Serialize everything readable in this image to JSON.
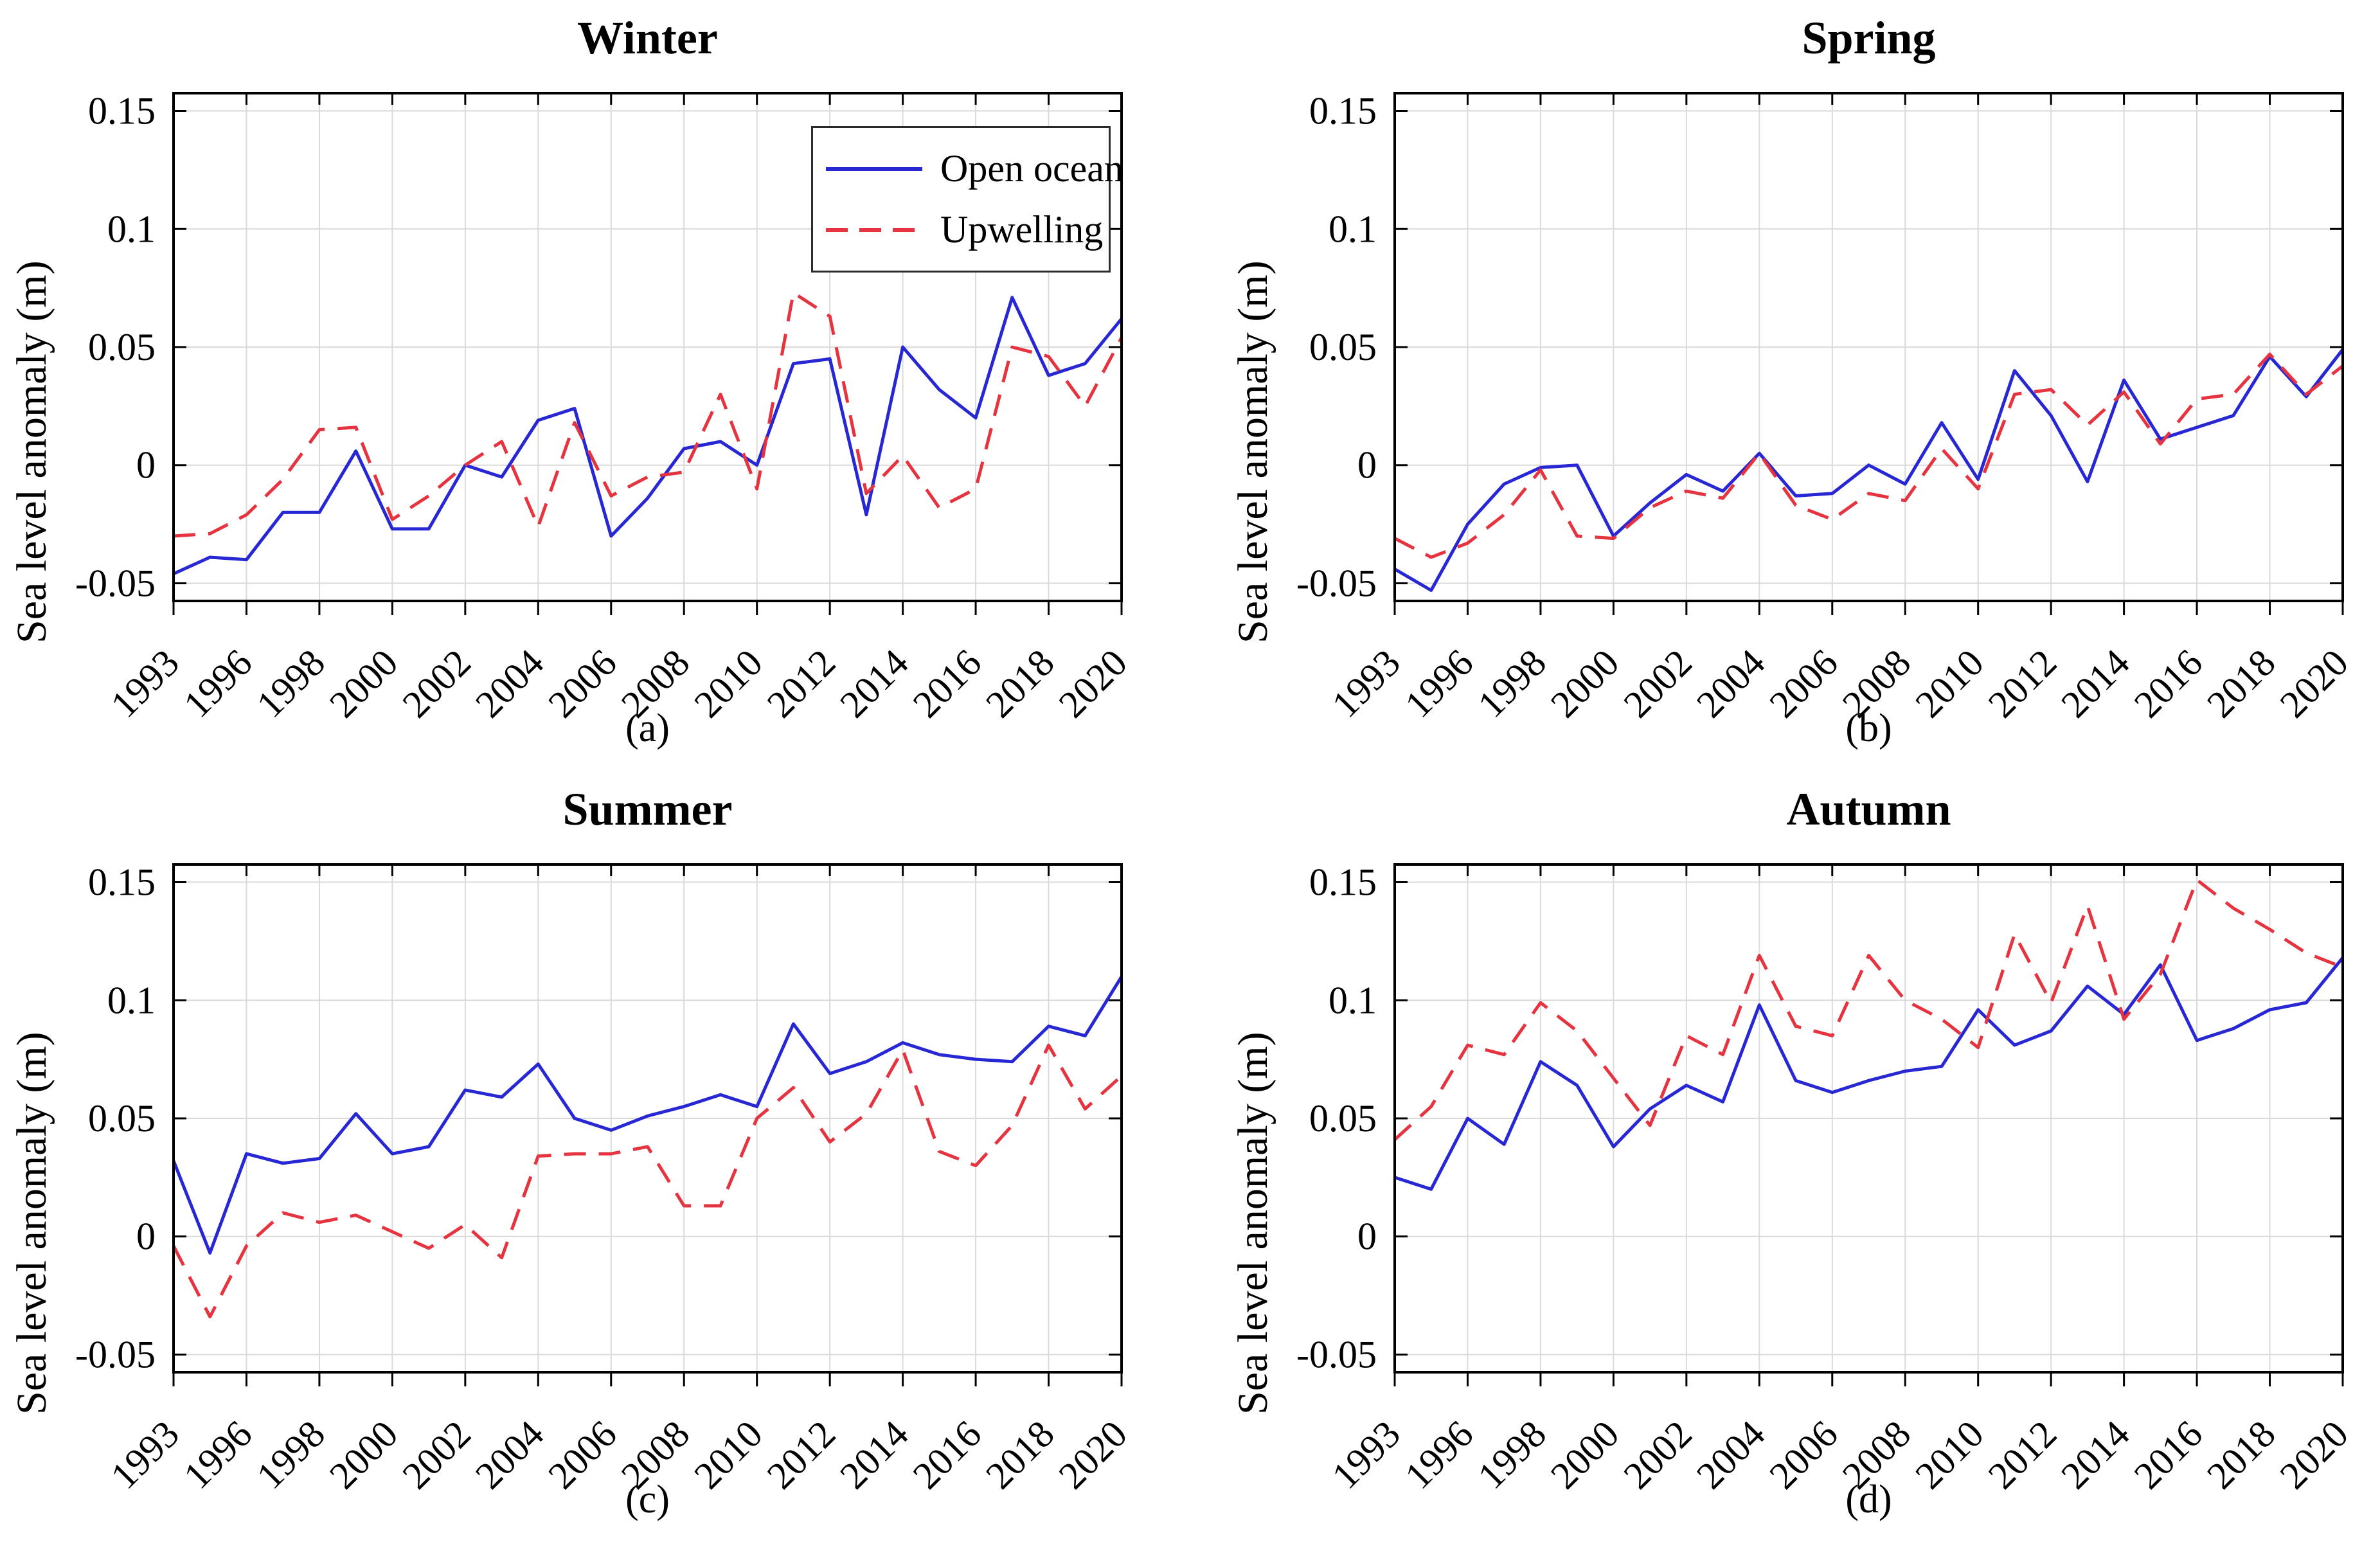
{
  "figure": {
    "y_axis_label": "Sea level anomaly (m)",
    "x_tick_labels": [
      "1993",
      "1996",
      "1998",
      "2000",
      "2002",
      "2004",
      "2006",
      "2008",
      "2010",
      "2012",
      "2014",
      "2016",
      "2018",
      "2020"
    ],
    "y_tick_labels": [
      "-0.05",
      "0",
      "0.05",
      "0.1",
      "0.15"
    ],
    "colors": {
      "open_ocean_line": "#2727d3",
      "upwelling_line": "#e5333f",
      "grid_line": "#dadada",
      "axis_and_text": "#000000",
      "background": "#ffffff"
    },
    "legend": {
      "entries": [
        {
          "label": "Open ocean",
          "style": "solid"
        },
        {
          "label": "Upwelling",
          "style": "dashed"
        }
      ]
    }
  },
  "chart_data": [
    {
      "type": "line",
      "title": "Winter",
      "caption": "(a)",
      "ylabel": "Sea level anomaly (m)",
      "n_points": 27,
      "x_tick_labels": [
        "1993",
        "1996",
        "1998",
        "2000",
        "2002",
        "2004",
        "2006",
        "2008",
        "2010",
        "2012",
        "2014",
        "2016",
        "2018",
        "2020"
      ],
      "y_ticks": [
        -0.05,
        0,
        0.05,
        0.1,
        0.15
      ],
      "y_tick_labels": [
        "-0.05",
        "0",
        "0.05",
        "0.1",
        "0.15"
      ],
      "ylim": [
        -0.0575,
        0.1575
      ],
      "grid": true,
      "legend_position": "top-right-inside",
      "show_legend": true,
      "series": [
        {
          "name": "Open ocean",
          "style": "solid",
          "values": [
            -0.046,
            -0.039,
            -0.04,
            -0.02,
            -0.02,
            0.006,
            -0.027,
            -0.027,
            0.0,
            -0.005,
            0.019,
            0.024,
            -0.03,
            -0.014,
            0.007,
            0.01,
            0.0,
            0.043,
            0.045,
            -0.021,
            0.05,
            0.032,
            0.02,
            0.071,
            0.038,
            0.043,
            0.062
          ]
        },
        {
          "name": "Upwelling",
          "style": "dashed",
          "values": [
            -0.03,
            -0.029,
            -0.021,
            -0.006,
            0.015,
            0.016,
            -0.023,
            -0.013,
            0.0,
            0.01,
            -0.026,
            0.018,
            -0.013,
            -0.005,
            -0.003,
            0.03,
            -0.01,
            0.073,
            0.063,
            -0.012,
            0.004,
            -0.018,
            -0.01,
            0.05,
            0.046,
            0.025,
            0.054
          ]
        }
      ]
    },
    {
      "type": "line",
      "title": "Spring",
      "caption": "(b)",
      "ylabel": "Sea level anomaly (m)",
      "n_points": 27,
      "x_tick_labels": [
        "1993",
        "1996",
        "1998",
        "2000",
        "2002",
        "2004",
        "2006",
        "2008",
        "2010",
        "2012",
        "2014",
        "2016",
        "2018",
        "2020"
      ],
      "y_ticks": [
        -0.05,
        0,
        0.05,
        0.1,
        0.15
      ],
      "y_tick_labels": [
        "-0.05",
        "0",
        "0.05",
        "0.1",
        "0.15"
      ],
      "ylim": [
        -0.0575,
        0.1575
      ],
      "grid": true,
      "show_legend": false,
      "series": [
        {
          "name": "Open ocean",
          "style": "solid",
          "values": [
            -0.044,
            -0.053,
            -0.025,
            -0.008,
            -0.001,
            0.0,
            -0.03,
            -0.016,
            -0.004,
            -0.011,
            0.005,
            -0.013,
            -0.012,
            0.0,
            -0.008,
            0.018,
            -0.006,
            0.04,
            0.021,
            -0.007,
            0.036,
            0.011,
            0.016,
            0.021,
            0.046,
            0.029,
            0.049
          ]
        },
        {
          "name": "Upwelling",
          "style": "dashed",
          "values": [
            -0.031,
            -0.039,
            -0.033,
            -0.021,
            -0.002,
            -0.03,
            -0.031,
            -0.018,
            -0.011,
            -0.014,
            0.005,
            -0.017,
            -0.023,
            -0.012,
            -0.015,
            0.007,
            -0.01,
            0.03,
            0.032,
            0.017,
            0.031,
            0.009,
            0.028,
            0.03,
            0.047,
            0.03,
            0.042
          ]
        }
      ]
    },
    {
      "type": "line",
      "title": "Summer",
      "caption": "(c)",
      "ylabel": "Sea level anomaly (m)",
      "n_points": 27,
      "x_tick_labels": [
        "1993",
        "1996",
        "1998",
        "2000",
        "2002",
        "2004",
        "2006",
        "2008",
        "2010",
        "2012",
        "2014",
        "2016",
        "2018",
        "2020"
      ],
      "y_ticks": [
        -0.05,
        0,
        0.05,
        0.1,
        0.15
      ],
      "y_tick_labels": [
        "-0.05",
        "0",
        "0.05",
        "0.1",
        "0.15"
      ],
      "ylim": [
        -0.0575,
        0.1575
      ],
      "grid": true,
      "show_legend": false,
      "series": [
        {
          "name": "Open ocean",
          "style": "solid",
          "values": [
            0.032,
            -0.007,
            0.035,
            0.031,
            0.033,
            0.052,
            0.035,
            0.038,
            0.062,
            0.059,
            0.073,
            0.05,
            0.045,
            0.051,
            0.055,
            0.06,
            0.055,
            0.09,
            0.069,
            0.074,
            0.082,
            0.077,
            0.075,
            0.074,
            0.089,
            0.085,
            0.11
          ]
        },
        {
          "name": "Upwelling",
          "style": "dashed",
          "values": [
            -0.004,
            -0.034,
            -0.004,
            0.01,
            0.006,
            0.009,
            0.002,
            -0.005,
            0.005,
            -0.009,
            0.034,
            0.035,
            0.035,
            0.038,
            0.013,
            0.013,
            0.05,
            0.063,
            0.04,
            0.052,
            0.079,
            0.036,
            0.03,
            0.047,
            0.081,
            0.054,
            0.068
          ]
        }
      ]
    },
    {
      "type": "line",
      "title": "Autumn",
      "caption": "(d)",
      "ylabel": "Sea level anomaly (m)",
      "n_points": 27,
      "x_tick_labels": [
        "1993",
        "1996",
        "1998",
        "2000",
        "2002",
        "2004",
        "2006",
        "2008",
        "2010",
        "2012",
        "2014",
        "2016",
        "2018",
        "2020"
      ],
      "y_ticks": [
        -0.05,
        0,
        0.05,
        0.1,
        0.15
      ],
      "y_tick_labels": [
        "-0.05",
        "0",
        "0.05",
        "0.1",
        "0.15"
      ],
      "ylim": [
        -0.0575,
        0.1575
      ],
      "grid": true,
      "show_legend": false,
      "series": [
        {
          "name": "Open ocean",
          "style": "solid",
          "values": [
            0.025,
            0.02,
            0.05,
            0.039,
            0.074,
            0.064,
            0.038,
            0.054,
            0.064,
            0.057,
            0.098,
            0.066,
            0.061,
            0.066,
            0.07,
            0.072,
            0.096,
            0.081,
            0.087,
            0.106,
            0.094,
            0.115,
            0.083,
            0.088,
            0.096,
            0.099,
            0.118
          ]
        },
        {
          "name": "Upwelling",
          "style": "dashed",
          "values": [
            0.041,
            0.055,
            0.081,
            0.077,
            0.099,
            0.087,
            0.067,
            0.047,
            0.085,
            0.077,
            0.119,
            0.089,
            0.085,
            0.119,
            0.1,
            0.092,
            0.08,
            0.128,
            0.099,
            0.14,
            0.092,
            0.111,
            0.151,
            0.139,
            0.13,
            0.12,
            0.114
          ]
        }
      ]
    }
  ]
}
